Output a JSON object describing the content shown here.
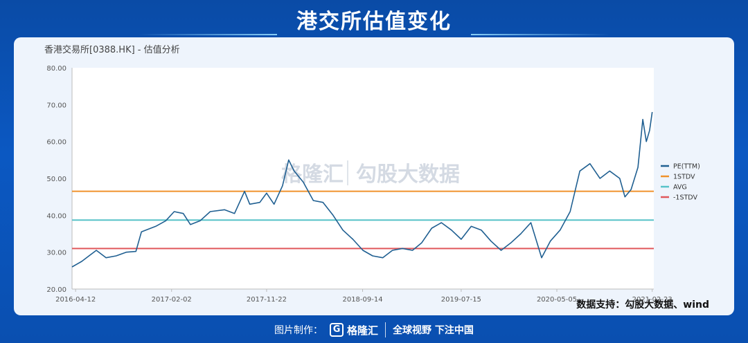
{
  "page_title": "港交所估值变化",
  "source_note": "数据支持：勾股大数据、wind",
  "watermark": {
    "brand": "格隆汇",
    "text": "勾股大数据"
  },
  "footer": {
    "label": "图片制作：",
    "brand": "格隆汇",
    "slogan": "全球视野 下注中国"
  },
  "colors": {
    "background": "#0a4fb0",
    "card": "#eef4fc",
    "plot_area": "#ffffff",
    "pe_line": "#1f5f91",
    "stdv_plus": "#f0922b",
    "avg": "#56c2c8",
    "stdv_minus": "#e0575b"
  },
  "chart_data": {
    "type": "line",
    "title": "香港交易所[0388.HK] - 估值分析",
    "ylim": [
      20,
      80
    ],
    "yticks": [
      "20.00",
      "30.00",
      "40.00",
      "50.00",
      "60.00",
      "70.00",
      "80.00"
    ],
    "xlim": [
      "2016-04-01",
      "2021-02-28"
    ],
    "xticks": [
      "2016-04-12",
      "2017-02-02",
      "2017-11-22",
      "2018-09-14",
      "2019-07-15",
      "2020-05-05",
      "2021-02-23"
    ],
    "legend_position": "right",
    "grid": false,
    "series": [
      {
        "name": "PE(TTM)",
        "points": [
          [
            "2016-04-01",
            26.0
          ],
          [
            "2016-05-01",
            27.5
          ],
          [
            "2016-06-15",
            30.5
          ],
          [
            "2016-07-15",
            28.5
          ],
          [
            "2016-08-15",
            29.0
          ],
          [
            "2016-09-15",
            30.0
          ],
          [
            "2016-10-15",
            30.2
          ],
          [
            "2016-11-01",
            35.5
          ],
          [
            "2016-12-15",
            37.0
          ],
          [
            "2017-01-15",
            38.5
          ],
          [
            "2017-02-10",
            41.0
          ],
          [
            "2017-03-10",
            40.5
          ],
          [
            "2017-04-01",
            37.5
          ],
          [
            "2017-05-01",
            38.5
          ],
          [
            "2017-06-01",
            41.0
          ],
          [
            "2017-07-15",
            41.5
          ],
          [
            "2017-08-15",
            40.5
          ],
          [
            "2017-09-15",
            46.5
          ],
          [
            "2017-10-01",
            43.0
          ],
          [
            "2017-11-01",
            43.5
          ],
          [
            "2017-11-22",
            46.0
          ],
          [
            "2017-12-15",
            43.0
          ],
          [
            "2018-01-10",
            48.0
          ],
          [
            "2018-01-29",
            55.0
          ],
          [
            "2018-02-15",
            52.0
          ],
          [
            "2018-03-15",
            49.0
          ],
          [
            "2018-04-15",
            44.0
          ],
          [
            "2018-05-15",
            43.5
          ],
          [
            "2018-06-15",
            40.0
          ],
          [
            "2018-07-15",
            36.0
          ],
          [
            "2018-08-15",
            33.5
          ],
          [
            "2018-09-15",
            30.5
          ],
          [
            "2018-10-15",
            29.0
          ],
          [
            "2018-11-15",
            28.5
          ],
          [
            "2018-12-15",
            30.5
          ],
          [
            "2019-01-15",
            31.0
          ],
          [
            "2019-02-15",
            30.5
          ],
          [
            "2019-03-15",
            32.5
          ],
          [
            "2019-04-15",
            36.5
          ],
          [
            "2019-05-15",
            38.0
          ],
          [
            "2019-06-15",
            36.0
          ],
          [
            "2019-07-15",
            33.5
          ],
          [
            "2019-08-15",
            37.0
          ],
          [
            "2019-09-15",
            36.0
          ],
          [
            "2019-10-15",
            33.0
          ],
          [
            "2019-11-15",
            30.5
          ],
          [
            "2019-12-15",
            32.5
          ],
          [
            "2020-01-15",
            35.0
          ],
          [
            "2020-02-15",
            38.0
          ],
          [
            "2020-03-19",
            28.5
          ],
          [
            "2020-04-15",
            33.0
          ],
          [
            "2020-05-15",
            36.0
          ],
          [
            "2020-06-15",
            41.0
          ],
          [
            "2020-07-15",
            52.0
          ],
          [
            "2020-08-15",
            54.0
          ],
          [
            "2020-09-15",
            50.0
          ],
          [
            "2020-10-15",
            52.0
          ],
          [
            "2020-11-15",
            50.0
          ],
          [
            "2020-12-01",
            45.0
          ],
          [
            "2020-12-20",
            47.0
          ],
          [
            "2021-01-10",
            53.0
          ],
          [
            "2021-01-25",
            66.0
          ],
          [
            "2021-02-05",
            60.0
          ],
          [
            "2021-02-15",
            63.0
          ],
          [
            "2021-02-23",
            68.0
          ]
        ]
      },
      {
        "name": "1STDV",
        "value": 46.5
      },
      {
        "name": "AVG",
        "value": 38.7
      },
      {
        "name": "-1STDV",
        "value": 31.0
      }
    ]
  }
}
